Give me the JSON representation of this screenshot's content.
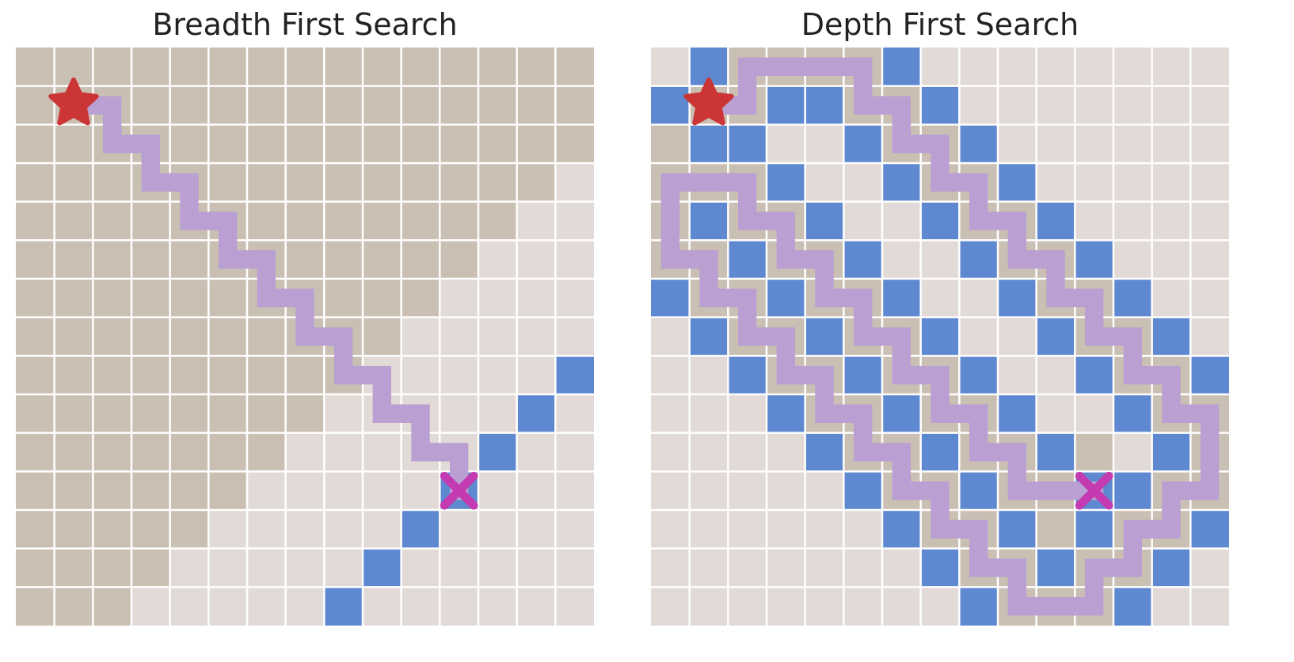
{
  "colors": {
    "explored": "#cabfb3",
    "unexplored": "#e2dad6",
    "frontier": "#5e88d0",
    "path": "#b99fd2",
    "start": "#cc3535",
    "goal": "#c43ab0",
    "gridline": "#ffffff"
  },
  "panels": [
    {
      "title": "Breadth First Search",
      "grid_size": 15,
      "explored_rule": "anti-diagonal",
      "explored_max_diag": 16,
      "explored_extra": [],
      "frontier": [
        [
          8,
          14
        ],
        [
          9,
          13
        ],
        [
          10,
          12
        ],
        [
          11,
          11
        ],
        [
          12,
          10
        ],
        [
          13,
          9
        ],
        [
          14,
          8
        ]
      ],
      "path": [
        [
          1,
          1
        ],
        [
          2,
          1
        ],
        [
          2,
          2
        ],
        [
          3,
          2
        ],
        [
          3,
          3
        ],
        [
          4,
          3
        ],
        [
          4,
          4
        ],
        [
          5,
          4
        ],
        [
          5,
          5
        ],
        [
          6,
          5
        ],
        [
          6,
          6
        ],
        [
          7,
          6
        ],
        [
          7,
          7
        ],
        [
          8,
          7
        ],
        [
          8,
          8
        ],
        [
          9,
          8
        ],
        [
          9,
          9
        ],
        [
          10,
          9
        ],
        [
          10,
          10
        ],
        [
          11,
          10
        ],
        [
          11,
          11
        ]
      ],
      "start": [
        1,
        1
      ],
      "goal": [
        11,
        11
      ]
    },
    {
      "title": "Depth First Search",
      "grid_size": 15,
      "explored_rule": "path-halo",
      "explored_max_diag": 0,
      "explored_extra": [
        [
          2,
          0
        ],
        [
          3,
          0
        ],
        [
          4,
          0
        ],
        [
          5,
          0
        ],
        [
          1,
          2
        ]
      ],
      "frontier": [
        [
          1,
          0
        ],
        [
          6,
          0
        ],
        [
          0,
          1
        ],
        [
          3,
          1
        ],
        [
          4,
          1
        ],
        [
          7,
          1
        ],
        [
          1,
          2
        ],
        [
          2,
          2
        ],
        [
          5,
          2
        ],
        [
          8,
          2
        ],
        [
          3,
          3
        ],
        [
          6,
          3
        ],
        [
          9,
          3
        ],
        [
          1,
          4
        ],
        [
          4,
          4
        ],
        [
          7,
          4
        ],
        [
          10,
          4
        ],
        [
          2,
          5
        ],
        [
          5,
          5
        ],
        [
          8,
          5
        ],
        [
          11,
          5
        ],
        [
          0,
          6
        ],
        [
          3,
          6
        ],
        [
          6,
          6
        ],
        [
          9,
          6
        ],
        [
          12,
          6
        ],
        [
          1,
          7
        ],
        [
          4,
          7
        ],
        [
          7,
          7
        ],
        [
          10,
          7
        ],
        [
          13,
          7
        ],
        [
          2,
          8
        ],
        [
          5,
          8
        ],
        [
          8,
          8
        ],
        [
          11,
          8
        ],
        [
          14,
          8
        ],
        [
          3,
          9
        ],
        [
          6,
          9
        ],
        [
          9,
          9
        ],
        [
          12,
          9
        ],
        [
          4,
          10
        ],
        [
          7,
          10
        ],
        [
          10,
          10
        ],
        [
          13,
          10
        ],
        [
          5,
          11
        ],
        [
          8,
          11
        ],
        [
          11,
          11
        ],
        [
          12,
          11
        ],
        [
          6,
          12
        ],
        [
          9,
          12
        ],
        [
          11,
          12
        ],
        [
          14,
          12
        ],
        [
          7,
          13
        ],
        [
          10,
          13
        ],
        [
          13,
          13
        ],
        [
          8,
          14
        ],
        [
          12,
          14
        ]
      ],
      "path": [
        [
          1,
          1
        ],
        [
          2,
          1
        ],
        [
          2,
          0
        ],
        [
          3,
          0
        ],
        [
          4,
          0
        ],
        [
          5,
          0
        ],
        [
          5,
          1
        ],
        [
          6,
          1
        ],
        [
          6,
          2
        ],
        [
          7,
          2
        ],
        [
          7,
          3
        ],
        [
          8,
          3
        ],
        [
          8,
          4
        ],
        [
          9,
          4
        ],
        [
          9,
          5
        ],
        [
          10,
          5
        ],
        [
          10,
          6
        ],
        [
          11,
          6
        ],
        [
          11,
          7
        ],
        [
          12,
          7
        ],
        [
          12,
          8
        ],
        [
          13,
          8
        ],
        [
          13,
          9
        ],
        [
          14,
          9
        ],
        [
          14,
          10
        ],
        [
          14,
          11
        ],
        [
          13,
          11
        ],
        [
          13,
          12
        ],
        [
          12,
          12
        ],
        [
          12,
          13
        ],
        [
          11,
          13
        ],
        [
          11,
          14
        ],
        [
          10,
          14
        ],
        [
          9,
          14
        ],
        [
          9,
          13
        ],
        [
          8,
          13
        ],
        [
          8,
          12
        ],
        [
          7,
          12
        ],
        [
          7,
          11
        ],
        [
          6,
          11
        ],
        [
          6,
          10
        ],
        [
          5,
          10
        ],
        [
          5,
          9
        ],
        [
          4,
          9
        ],
        [
          4,
          8
        ],
        [
          3,
          8
        ],
        [
          3,
          7
        ],
        [
          2,
          7
        ],
        [
          2,
          6
        ],
        [
          1,
          6
        ],
        [
          1,
          5
        ],
        [
          0,
          5
        ],
        [
          0,
          4
        ],
        [
          0,
          3
        ],
        [
          1,
          3
        ],
        [
          2,
          3
        ],
        [
          2,
          4
        ],
        [
          3,
          4
        ],
        [
          3,
          5
        ],
        [
          4,
          5
        ],
        [
          4,
          6
        ],
        [
          5,
          6
        ],
        [
          5,
          7
        ],
        [
          6,
          7
        ],
        [
          6,
          8
        ],
        [
          7,
          8
        ],
        [
          7,
          9
        ],
        [
          8,
          9
        ],
        [
          8,
          10
        ],
        [
          9,
          10
        ],
        [
          9,
          11
        ],
        [
          10,
          11
        ],
        [
          11,
          11
        ]
      ],
      "start": [
        1,
        1
      ],
      "goal": [
        11,
        11
      ]
    }
  ]
}
